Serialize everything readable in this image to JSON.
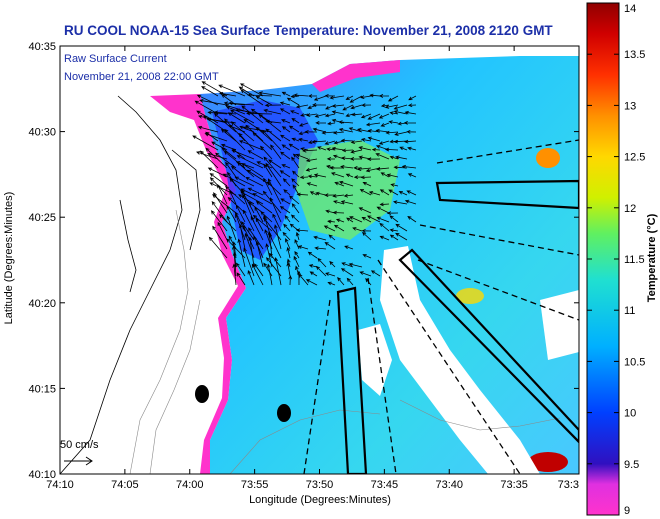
{
  "chart_data": {
    "type": "heatmap",
    "title": "RU COOL  NOAA-15  Sea Surface Temperature:  November 21, 2008 2120 GMT",
    "legend_lines": [
      "Raw Surface Current",
      "November 21, 2008 22:00 GMT"
    ],
    "xlabel": "Longitude (Degrees:Minutes)",
    "ylabel": "Latitude (Degrees:Minutes)",
    "x_tick_labels": [
      "74:10",
      "74:05",
      "74:00",
      "73:55",
      "73:50",
      "73:45",
      "73:40",
      "73:35",
      "73:3"
    ],
    "y_tick_labels": [
      "40:10",
      "40:15",
      "40:20",
      "40:25",
      "40:30",
      "40:35"
    ],
    "colorbar": {
      "label": "Temperature (°C)",
      "min": 9,
      "max": 14,
      "tick_labels": [
        "9",
        "9.5",
        "10",
        "10.5",
        "11",
        "11.5",
        "12",
        "12.5",
        "13",
        "13.5",
        "14"
      ]
    },
    "scale_label": "50 cm/s",
    "colors": {
      "title": "#1c2fa8",
      "land": "#ffffff",
      "cold": "#ff33cc",
      "warm": "#b40000"
    }
  }
}
